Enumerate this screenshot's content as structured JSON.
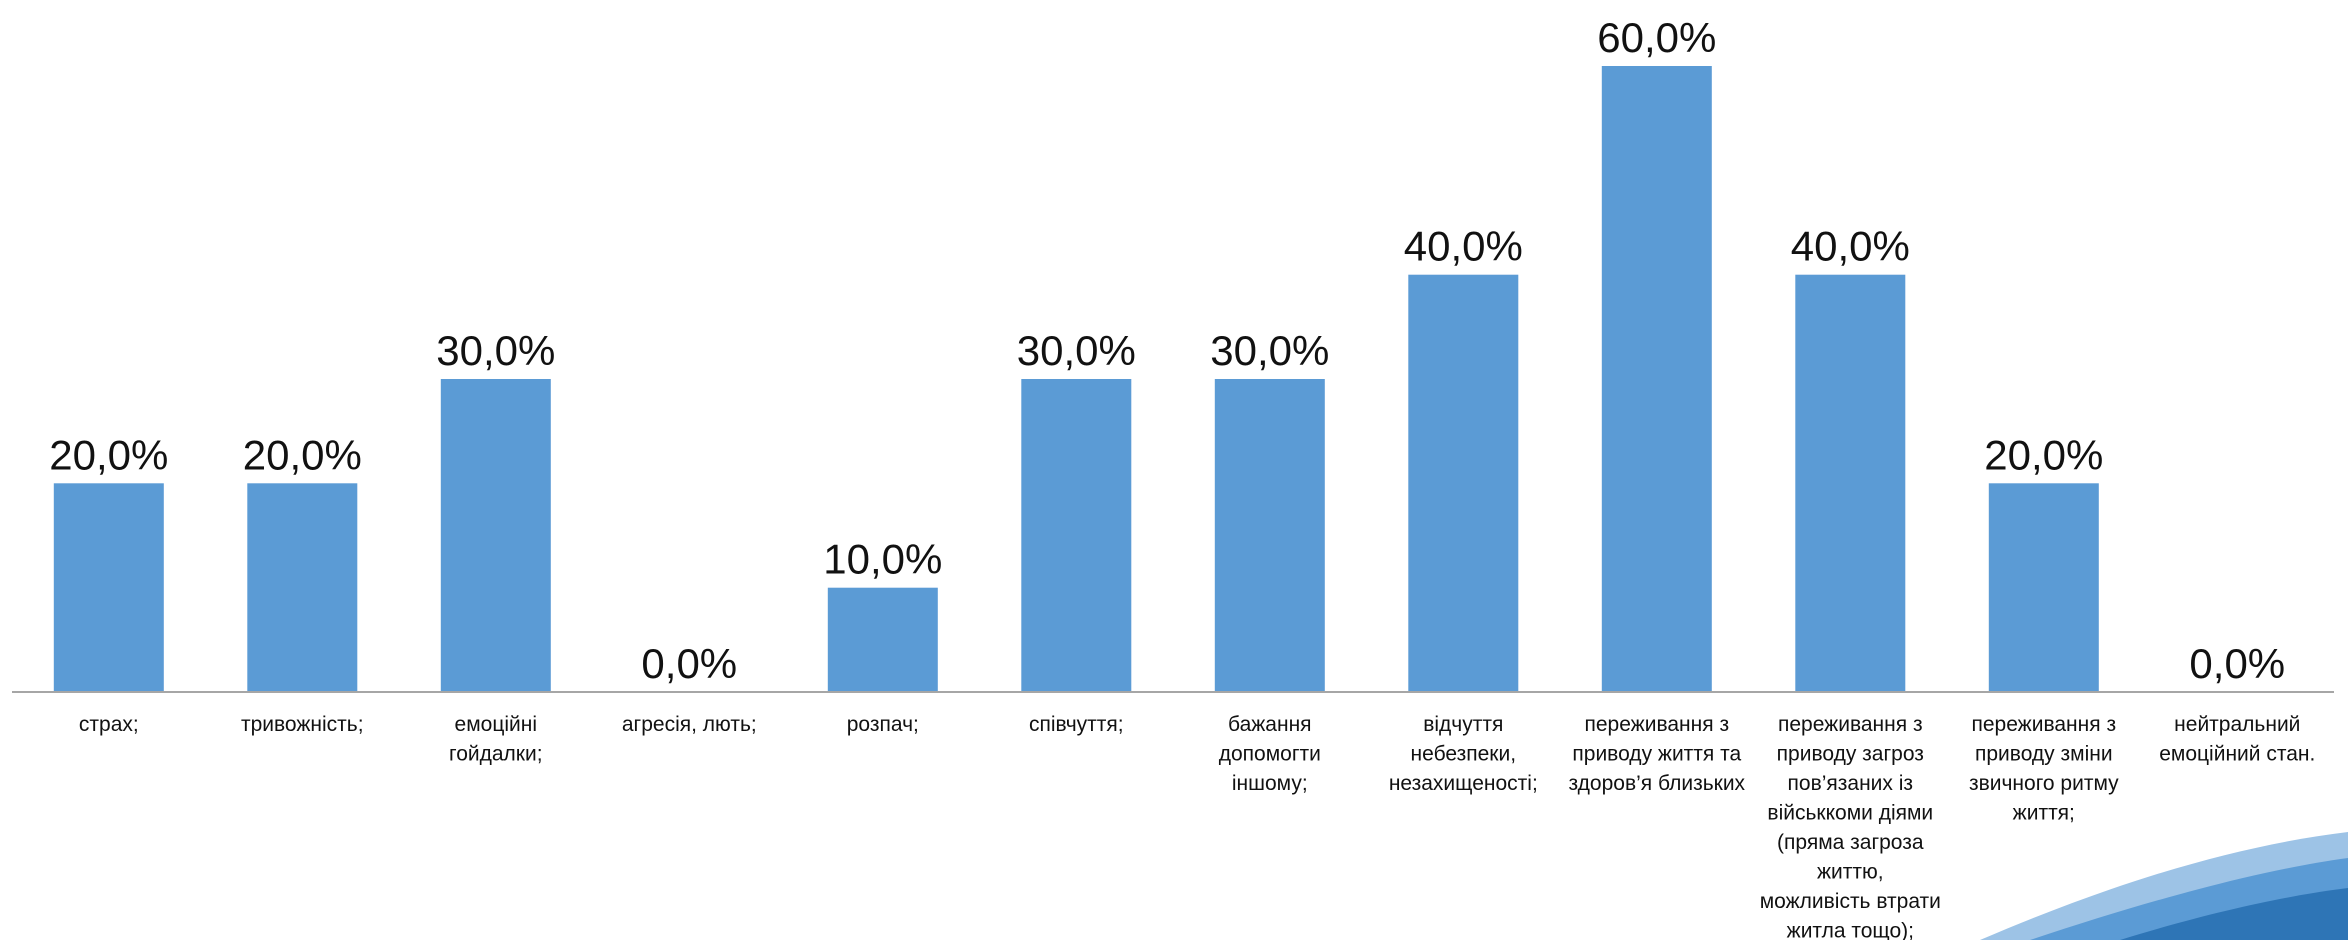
{
  "chart_data": {
    "type": "bar",
    "categories": [
      "страх;",
      "тривожність;",
      "емоційні гойдалки;",
      "агресія, лють;",
      "розпач;",
      "співчуття;",
      "бажання допомогти іншому;",
      "відчуття небезпеки, незахищеності;",
      "переживання з приводу життя та здоров’я близьких",
      "переживання з приводу загроз пов’язаних із військкоми діями (пряма загроза життю, можливість втрати житла тощо);",
      "переживання з приводу зміни звичного ритму життя;",
      "нейтральний емоційний стан."
    ],
    "category_lines": [
      [
        "страх;"
      ],
      [
        "тривожність;"
      ],
      [
        "емоційні",
        "гойдалки;"
      ],
      [
        "агресія, лють;"
      ],
      [
        "розпач;"
      ],
      [
        "співчуття;"
      ],
      [
        "бажання",
        "допомогти",
        "іншому;"
      ],
      [
        "відчуття",
        "небезпеки,",
        "незахищеності;"
      ],
      [
        "переживання з",
        "приводу життя та",
        "здоров’я близьких"
      ],
      [
        "переживання з",
        "приводу загроз",
        "пов’язаних із",
        "військкоми діями",
        "(пряма загроза",
        "життю,",
        "можливість втрати",
        "житла тощо);"
      ],
      [
        "переживання з",
        "приводу зміни",
        "звичного ритму",
        "життя;"
      ],
      [
        "нейтральний",
        "емоційний стан."
      ]
    ],
    "values": [
      20.0,
      20.0,
      30.0,
      0.0,
      10.0,
      30.0,
      30.0,
      40.0,
      60.0,
      40.0,
      20.0,
      0.0
    ],
    "data_labels": [
      "20,0%",
      "20,0%",
      "30,0%",
      "0,0%",
      "10,0%",
      "30,0%",
      "30,0%",
      "40,0%",
      "60,0%",
      "40,0%",
      "20,0%",
      "0,0%"
    ],
    "ylim": [
      0,
      60
    ],
    "bar_color": "#5b9bd5",
    "grid": false,
    "legend": "none"
  },
  "decoration": {
    "swoosh_colors": [
      "#9dc3e6",
      "#5b9bd5",
      "#2e75b6"
    ]
  }
}
